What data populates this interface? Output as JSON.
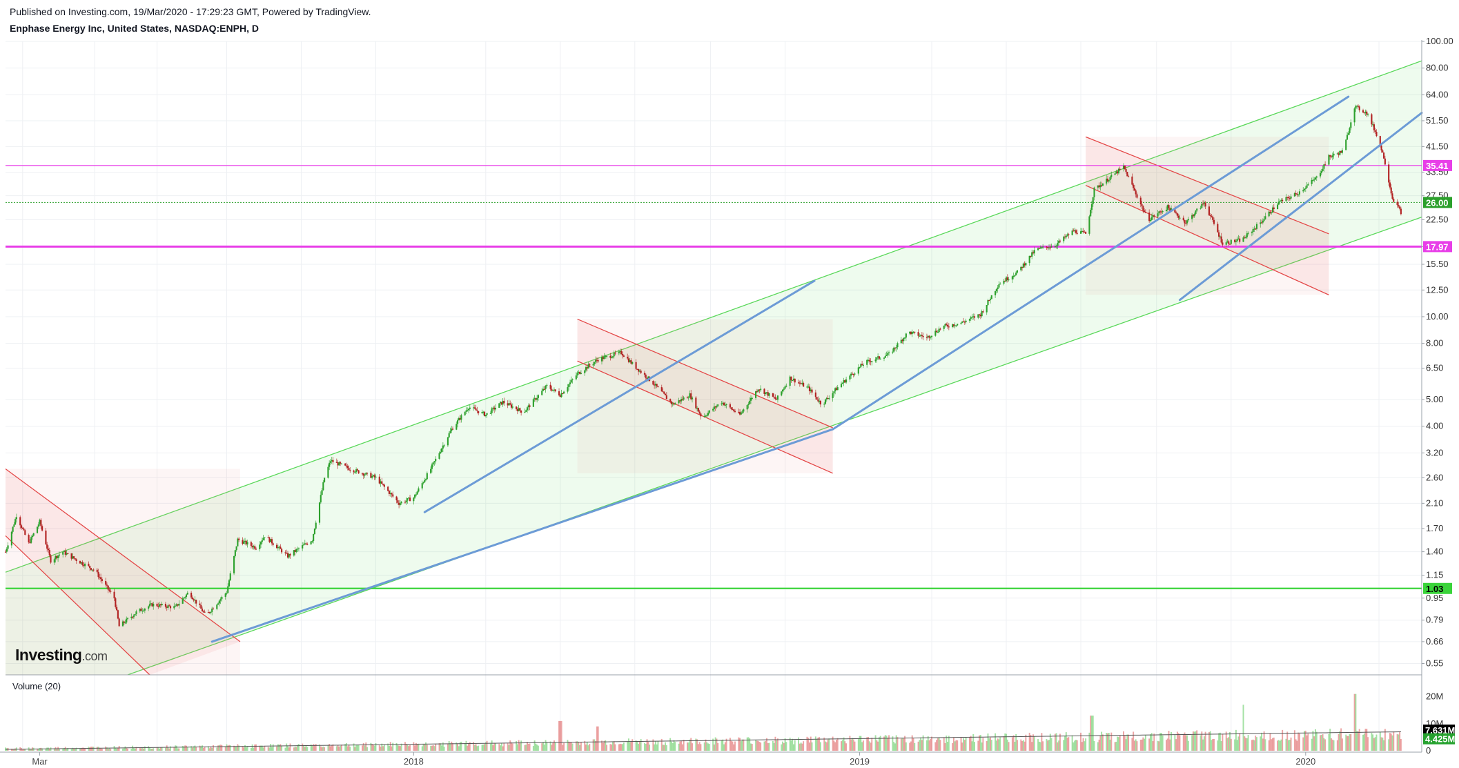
{
  "header": {
    "line1": "Published on Investing.com, 19/Mar/2020 - 17:29:23 GMT, Powered by TradingView.",
    "line2": "Enphase Energy Inc, United States, NASDAQ:ENPH, D"
  },
  "logo": {
    "brand": "Investing",
    "suffix": ".com"
  },
  "volume_panel": {
    "title": "Volume (20)",
    "ticks": [
      "20M",
      "10M",
      "0"
    ],
    "badges": [
      {
        "text": "7.631M",
        "color": "#000000"
      },
      {
        "text": "4.425M",
        "color": "#26a22f"
      }
    ]
  },
  "colors": {
    "up": "#2ca02c",
    "down": "#b22222",
    "channel": "#5ad85a",
    "down_channel": "#e44848",
    "trend": "#6c9bd6",
    "magenta": "#e83ee8",
    "green_level": "#3ad43a"
  },
  "chart_data": {
    "type": "candlestick",
    "title": "Enphase Energy Inc, United States, NASDAQ:ENPH, D",
    "y_scale": "log",
    "ylim": [
      0.5,
      100
    ],
    "y_ticks": [
      "100.00",
      "80.00",
      "64.00",
      "51.50",
      "41.50",
      "33.50",
      "27.50",
      "22.50",
      "17.97",
      "15.50",
      "12.50",
      "10.00",
      "8.00",
      "6.50",
      "5.00",
      "4.00",
      "3.20",
      "2.60",
      "2.10",
      "1.70",
      "1.40",
      "1.15",
      "0.95",
      "0.79",
      "0.66",
      "0.55"
    ],
    "x_labels": [
      "Mar",
      "2018",
      "2019",
      "2020"
    ],
    "levels": [
      {
        "value": 35.41,
        "label": "35.41",
        "style": "magenta-thin"
      },
      {
        "value": 26.0,
        "label": "26.00",
        "style": "green-dotted"
      },
      {
        "value": 17.97,
        "label": "17.97",
        "style": "magenta-thick"
      },
      {
        "value": 1.03,
        "label": "1.03",
        "style": "green-thick"
      }
    ],
    "price_path": [
      [
        "2017-02-01",
        1.4
      ],
      [
        "2017-02-10",
        1.9
      ],
      [
        "2017-02-20",
        1.5
      ],
      [
        "2017-03-01",
        1.8
      ],
      [
        "2017-03-10",
        1.3
      ],
      [
        "2017-03-20",
        1.4
      ],
      [
        "2017-04-01",
        1.3
      ],
      [
        "2017-04-15",
        1.2
      ],
      [
        "2017-05-01",
        0.95
      ],
      [
        "2017-05-05",
        0.75
      ],
      [
        "2017-05-20",
        0.85
      ],
      [
        "2017-06-01",
        0.9
      ],
      [
        "2017-06-20",
        0.88
      ],
      [
        "2017-07-01",
        1.0
      ],
      [
        "2017-07-15",
        0.82
      ],
      [
        "2017-08-01",
        1.0
      ],
      [
        "2017-08-10",
        1.55
      ],
      [
        "2017-08-25",
        1.45
      ],
      [
        "2017-09-01",
        1.6
      ],
      [
        "2017-09-20",
        1.35
      ],
      [
        "2017-10-10",
        1.55
      ],
      [
        "2017-10-20",
        2.6
      ],
      [
        "2017-10-25",
        3.0
      ],
      [
        "2017-11-10",
        2.8
      ],
      [
        "2017-12-01",
        2.6
      ],
      [
        "2017-12-20",
        2.1
      ],
      [
        "2018-01-01",
        2.2
      ],
      [
        "2018-01-15",
        2.8
      ],
      [
        "2018-02-01",
        3.9
      ],
      [
        "2018-02-15",
        4.7
      ],
      [
        "2018-03-01",
        4.4
      ],
      [
        "2018-03-15",
        4.9
      ],
      [
        "2018-04-01",
        4.5
      ],
      [
        "2018-04-20",
        5.6
      ],
      [
        "2018-05-01",
        5.2
      ],
      [
        "2018-05-15",
        6.2
      ],
      [
        "2018-06-01",
        7.0
      ],
      [
        "2018-06-20",
        7.4
      ],
      [
        "2018-07-01",
        6.6
      ],
      [
        "2018-07-15",
        5.8
      ],
      [
        "2018-08-01",
        4.8
      ],
      [
        "2018-08-15",
        5.2
      ],
      [
        "2018-08-25",
        4.3
      ],
      [
        "2018-09-10",
        4.9
      ],
      [
        "2018-09-25",
        4.4
      ],
      [
        "2018-10-10",
        5.5
      ],
      [
        "2018-10-25",
        5.0
      ],
      [
        "2018-11-05",
        6.0
      ],
      [
        "2018-11-20",
        5.5
      ],
      [
        "2018-12-01",
        4.8
      ],
      [
        "2018-12-15",
        5.6
      ],
      [
        "2019-01-05",
        6.8
      ],
      [
        "2019-01-25",
        7.3
      ],
      [
        "2019-02-10",
        8.8
      ],
      [
        "2019-02-25",
        8.4
      ],
      [
        "2019-03-10",
        9.2
      ],
      [
        "2019-03-25",
        9.5
      ],
      [
        "2019-04-10",
        10.2
      ],
      [
        "2019-04-25",
        13.2
      ],
      [
        "2019-05-10",
        14.5
      ],
      [
        "2019-05-25",
        17.5
      ],
      [
        "2019-06-10",
        18.2
      ],
      [
        "2019-06-25",
        20.5
      ],
      [
        "2019-07-05",
        20.0
      ],
      [
        "2019-07-12",
        29.0
      ],
      [
        "2019-07-25",
        32.0
      ],
      [
        "2019-08-05",
        35.0
      ],
      [
        "2019-08-15",
        28.0
      ],
      [
        "2019-08-25",
        22.5
      ],
      [
        "2019-09-10",
        25.0
      ],
      [
        "2019-09-25",
        22.0
      ],
      [
        "2019-10-10",
        26.0
      ],
      [
        "2019-10-25",
        18.5
      ],
      [
        "2019-11-10",
        19.0
      ],
      [
        "2019-11-25",
        22.0
      ],
      [
        "2019-12-10",
        26.0
      ],
      [
        "2019-12-25",
        28.0
      ],
      [
        "2020-01-10",
        32.0
      ],
      [
        "2020-01-20",
        38.0
      ],
      [
        "2020-02-01",
        40.0
      ],
      [
        "2020-02-10",
        58.0
      ],
      [
        "2020-02-20",
        55.0
      ],
      [
        "2020-02-28",
        46.0
      ],
      [
        "2020-03-05",
        38.0
      ],
      [
        "2020-03-12",
        27.0
      ],
      [
        "2020-03-19",
        24.0
      ]
    ],
    "annotations": {
      "rising_channel": {
        "upper": [
          [
            "2017-02-01",
            1.18
          ],
          [
            "2020-04-05",
            85.0
          ]
        ],
        "lower": [
          [
            "2017-05-12",
            0.5
          ],
          [
            "2020-04-05",
            23.0
          ]
        ]
      },
      "falling_channels": [
        {
          "upper": [
            [
              "2017-02-01",
              2.8
            ],
            [
              "2017-08-12",
              0.66
            ]
          ],
          "lower": [
            [
              "2017-02-01",
              1.6
            ],
            [
              "2017-05-30",
              0.5
            ]
          ]
        },
        {
          "upper": [
            [
              "2018-05-15",
              9.8
            ],
            [
              "2018-12-10",
              3.95
            ]
          ],
          "lower": [
            [
              "2018-05-15",
              6.9
            ],
            [
              "2018-12-10",
              2.7
            ]
          ]
        },
        {
          "upper": [
            [
              "2019-07-05",
              45.0
            ],
            [
              "2020-01-20",
              20.0
            ]
          ],
          "lower": [
            [
              "2019-07-05",
              30.0
            ],
            [
              "2020-01-20",
              12.0
            ]
          ]
        }
      ],
      "trendlines": [
        [
          [
            "2017-07-20",
            0.66
          ],
          [
            "2018-12-10",
            3.9
          ]
        ],
        [
          [
            "2018-12-10",
            3.9
          ],
          [
            "2020-02-05",
            63.0
          ]
        ],
        [
          [
            "2019-09-20",
            11.5
          ],
          [
            "2020-04-05",
            55.0
          ]
        ],
        [
          [
            "2018-01-10",
            1.95
          ],
          [
            "2018-11-25",
            13.5
          ]
        ]
      ]
    },
    "volume": {
      "series": "Volume (20)",
      "peak_values": [
        [
          "2018-05-01",
          11
        ],
        [
          "2018-06-01",
          9
        ],
        [
          "2019-07-10",
          13
        ],
        [
          "2019-11-10",
          17
        ],
        [
          "2020-02-10",
          21
        ]
      ]
    }
  }
}
